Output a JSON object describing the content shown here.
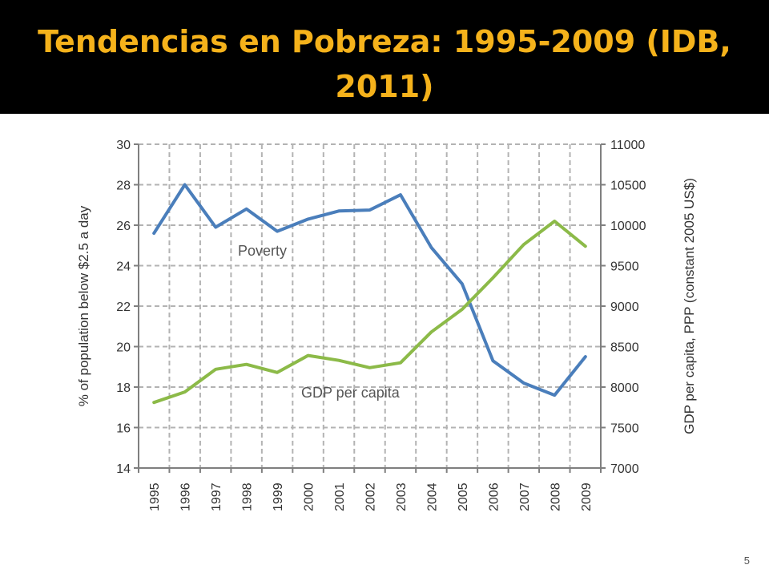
{
  "slide": {
    "title": "Tendencias en Pobreza: 1995-2009 (IDB, 2011)",
    "page_number": "5",
    "colors": {
      "title_bar": "#000000",
      "title_text": "#f5b21b",
      "poverty": "#4a7ebb",
      "gdp": "#8cba48",
      "grid": "#b3b3b3"
    }
  },
  "chart_data": {
    "type": "line",
    "title": "",
    "categories": [
      "1995",
      "1996",
      "1997",
      "1998",
      "1999",
      "2000",
      "2001",
      "2002",
      "2003",
      "2004",
      "2005",
      "2006",
      "2007",
      "2008",
      "2009"
    ],
    "ylabel": "% of population below $2.5 a day",
    "y2label": "GDP per capita, PPP (constant 2005 US$)",
    "ylim": [
      14,
      30
    ],
    "y2lim": [
      7000,
      11000
    ],
    "yticks": [
      "14",
      "16",
      "18",
      "20",
      "22",
      "24",
      "26",
      "28",
      "30"
    ],
    "y2ticks": [
      "7000",
      "7500",
      "8000",
      "8500",
      "9000",
      "9500",
      "10000",
      "10500",
      "11000"
    ],
    "grid": true,
    "series": [
      {
        "name": "Poverty",
        "axis": "left",
        "color": "#4a7ebb",
        "values": [
          25.6,
          28.0,
          25.9,
          26.8,
          25.7,
          26.3,
          26.7,
          26.75,
          27.5,
          24.9,
          23.1,
          19.3,
          18.2,
          17.6,
          19.5
        ]
      },
      {
        "name": "GDP per capita",
        "axis": "right",
        "color": "#8cba48",
        "values": [
          7810,
          7940,
          8220,
          8280,
          8180,
          8390,
          8330,
          8240,
          8300,
          8680,
          8960,
          9350,
          9760,
          10050,
          9740
        ]
      }
    ]
  }
}
